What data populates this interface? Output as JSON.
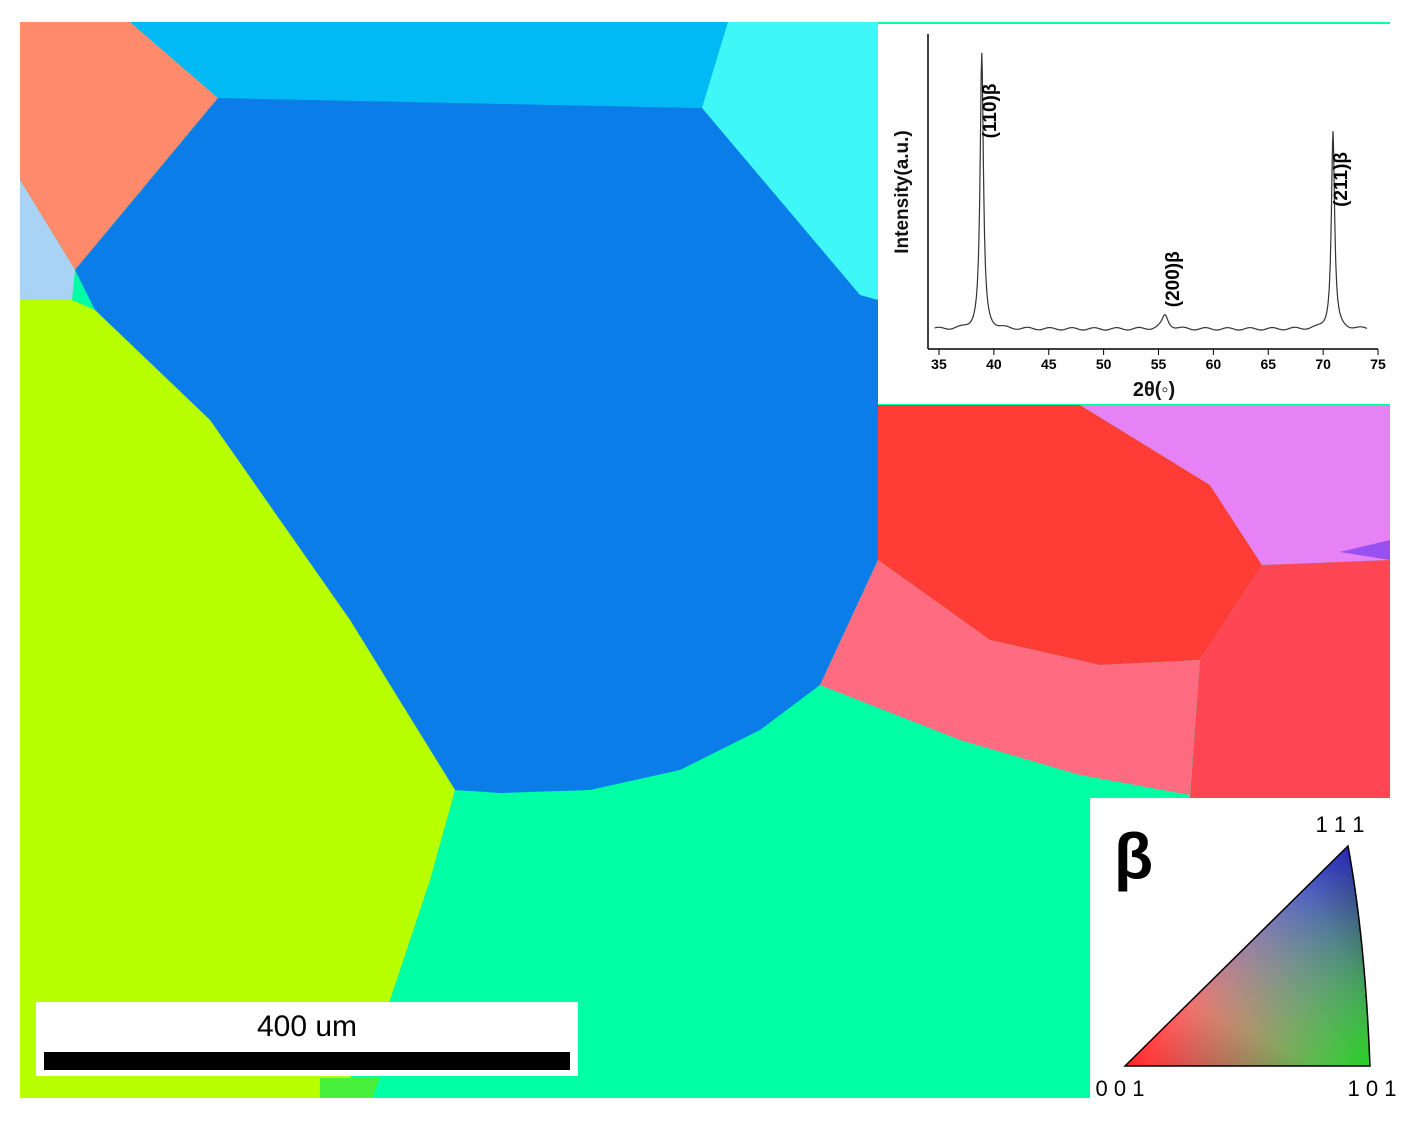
{
  "scale_bar": {
    "label": "400 um"
  },
  "xrd_inset": {
    "ylabel": "Intensity(a.u.)",
    "xlabel": "2θ(◦)",
    "x_ticks": [
      "35",
      "40",
      "45",
      "50",
      "55",
      "60",
      "65",
      "70",
      "75"
    ],
    "peak_labels": [
      "(110)β",
      "(200)β",
      "(211)β"
    ]
  },
  "chart_data": {
    "type": "line",
    "ylabel": "Intensity(a.u.)",
    "xlabel": "2θ(◦)",
    "xlim": [
      34,
      75
    ],
    "x_ticks": [
      35,
      40,
      45,
      50,
      55,
      60,
      65,
      70,
      75
    ],
    "peaks": [
      {
        "label": "(110)β",
        "x": 38.9,
        "relative_intensity": 1.0
      },
      {
        "label": "(200)β",
        "x": 55.6,
        "relative_intensity": 0.05
      },
      {
        "label": "(211)β",
        "x": 70.9,
        "relative_intensity": 0.72
      }
    ]
  },
  "ipf_legend": {
    "phase": "β",
    "corner_111": "1 1 1",
    "corner_001": "0 0 1",
    "corner_101": "1 0 1"
  },
  "grain_colors": {
    "dark_blue": "#0a7de8",
    "yellow_green": "#b8ff00",
    "mint_green": "#00ffa5",
    "red": "#ff3d36",
    "pink": "#ff6c82",
    "salmon": "#ff8a6c",
    "sky_blue": "#00b9f5",
    "cyan": "#3ff7f7",
    "violet": "#e682f5",
    "crimson": "#ff4655"
  }
}
